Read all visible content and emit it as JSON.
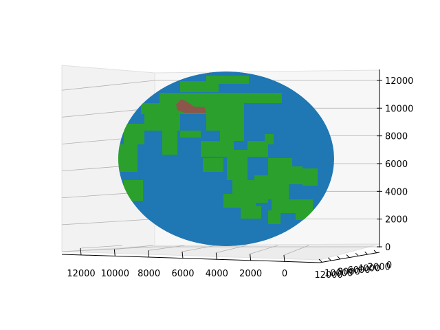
{
  "chart_data": {
    "type": "3d-surface",
    "title": "",
    "xlabel": "",
    "ylabel": "",
    "zlabel": "",
    "grid": true,
    "legend": "none",
    "x_axis": {
      "ticks": [
        12000,
        10000,
        8000,
        6000,
        4000,
        2000,
        0
      ],
      "range": [
        0,
        12742
      ]
    },
    "y_axis": {
      "ticks": [
        12000,
        10000,
        8000,
        6000,
        4000,
        2000,
        0
      ],
      "range": [
        0,
        12742
      ]
    },
    "z_axis": {
      "ticks": [
        0,
        2000,
        4000,
        6000,
        8000,
        10000,
        12000
      ],
      "range": [
        0,
        12742
      ]
    },
    "surface": {
      "shape": "sphere",
      "center": [
        6371,
        6371,
        6371
      ],
      "radius": 6371,
      "colors": {
        "ocean": "#1f77b4",
        "land": "#2ca02c",
        "mountain": "#8c564b"
      }
    },
    "x_tick_labels": [
      "12000",
      "10000",
      "8000",
      "6000",
      "4000",
      "2000",
      "0"
    ],
    "y_tick_labels": [
      "12000",
      "10000",
      "8000",
      "6000",
      "4000",
      "2000",
      "0"
    ],
    "z_tick_labels": [
      "0",
      "2000",
      "4000",
      "6000",
      "8000",
      "10000",
      "12000"
    ]
  }
}
